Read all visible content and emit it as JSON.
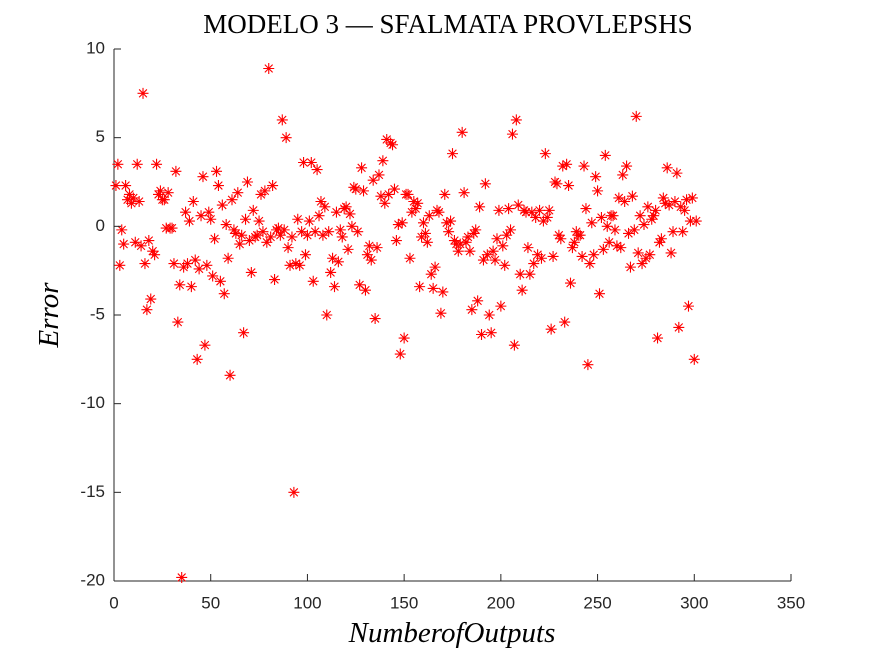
{
  "chart_data": {
    "type": "scatter",
    "title": "MODELO 3 — SFALMATA PROVLEPSHS",
    "x_label": "NumberofOutputs",
    "y_label": "Error",
    "color": "#ff0000",
    "marker": "asterisk",
    "xlim": [
      0,
      350
    ],
    "xticks": [
      0,
      50,
      100,
      150,
      200,
      250,
      300,
      350
    ],
    "ylim": [
      -20,
      10
    ],
    "yticks": [
      -20,
      -15,
      -10,
      -5,
      0,
      5,
      10
    ],
    "x": [
      1,
      2,
      3,
      4,
      5,
      6,
      7,
      8,
      9,
      10,
      11,
      12,
      13,
      14,
      15,
      16,
      17,
      18,
      19,
      20,
      21,
      22,
      23,
      24,
      25,
      26,
      27,
      28,
      29,
      30,
      31,
      32,
      33,
      34,
      35,
      36,
      37,
      38,
      39,
      40,
      41,
      42,
      43,
      44,
      45,
      46,
      47,
      48,
      49,
      50,
      51,
      52,
      53,
      54,
      55,
      56,
      57,
      58,
      59,
      60,
      61,
      62,
      63,
      64,
      65,
      66,
      67,
      68,
      69,
      70,
      71,
      72,
      73,
      74,
      75,
      76,
      77,
      78,
      79,
      80,
      81,
      82,
      83,
      84,
      85,
      86,
      87,
      88,
      89,
      90,
      91,
      92,
      93,
      94,
      95,
      96,
      97,
      98,
      99,
      100,
      101,
      102,
      103,
      104,
      105,
      106,
      107,
      108,
      109,
      110,
      111,
      112,
      113,
      114,
      115,
      116,
      117,
      118,
      119,
      120,
      121,
      122,
      123,
      124,
      125,
      126,
      127,
      128,
      129,
      130,
      131,
      132,
      133,
      134,
      135,
      136,
      137,
      138,
      139,
      140,
      141,
      142,
      143,
      144,
      145,
      146,
      147,
      148,
      149,
      150,
      151,
      152,
      153,
      154,
      155,
      156,
      157,
      158,
      159,
      160,
      161,
      162,
      163,
      164,
      165,
      166,
      167,
      168,
      169,
      170,
      171,
      172,
      173,
      174,
      175,
      176,
      177,
      178,
      179,
      180,
      181,
      182,
      183,
      184,
      185,
      186,
      187,
      188,
      189,
      190,
      191,
      192,
      193,
      194,
      195,
      196,
      197,
      198,
      199,
      200,
      201,
      202,
      203,
      204,
      205,
      206,
      207,
      208,
      209,
      210,
      211,
      212,
      213,
      214,
      215,
      216,
      217,
      218,
      219,
      220,
      221,
      222,
      223,
      224,
      225,
      226,
      227,
      228,
      229,
      230,
      231,
      232,
      233,
      234,
      235,
      236,
      237,
      238,
      239,
      240,
      241,
      242,
      243,
      244,
      245,
      246,
      247,
      248,
      249,
      250,
      251,
      252,
      253,
      254,
      255,
      256,
      257,
      258,
      259,
      260,
      261,
      262,
      263,
      264,
      265,
      266,
      267,
      268,
      269,
      270,
      271,
      272,
      273,
      274,
      275,
      276,
      277,
      278,
      279,
      280,
      281,
      282,
      283,
      284,
      285,
      286,
      287,
      288,
      289,
      290,
      291,
      292,
      293,
      294,
      295,
      296,
      297,
      298,
      299,
      300,
      301
    ],
    "values": [
      2.3,
      3.5,
      -2.2,
      -0.2,
      -1.0,
      2.3,
      1.5,
      1.8,
      1.3,
      1.6,
      -0.9,
      3.5,
      1.4,
      -1.1,
      7.5,
      -2.1,
      -4.7,
      -0.8,
      -4.1,
      -1.4,
      -1.6,
      3.5,
      1.8,
      2.0,
      1.5,
      1.5,
      -0.1,
      1.9,
      -0.1,
      -0.1,
      -2.1,
      3.1,
      -5.4,
      -3.3,
      -19.8,
      -2.3,
      0.8,
      -2.1,
      0.3,
      -3.4,
      1.4,
      -1.9,
      -7.5,
      -2.4,
      0.6,
      2.8,
      -6.7,
      -2.2,
      0.8,
      0.4,
      -2.8,
      -0.7,
      3.1,
      2.3,
      -3.1,
      1.2,
      -3.8,
      0.1,
      -1.8,
      -8.4,
      1.5,
      -0.2,
      -0.4,
      1.9,
      -1.0,
      -0.5,
      -6.0,
      0.4,
      2.5,
      -0.8,
      -2.6,
      0.9,
      -0.6,
      -0.5,
      0.3,
      1.8,
      -0.3,
      2.0,
      -0.9,
      8.9,
      -0.6,
      2.3,
      -3.0,
      -0.2,
      -0.1,
      -0.5,
      6.0,
      -0.2,
      5.0,
      -1.2,
      -2.2,
      -0.6,
      -15.0,
      -2.1,
      0.4,
      -2.2,
      -0.3,
      3.6,
      -1.6,
      -0.5,
      0.3,
      3.6,
      -3.1,
      -0.3,
      3.2,
      0.6,
      1.4,
      -0.5,
      1.1,
      -5.0,
      -0.3,
      -2.6,
      -1.8,
      -3.4,
      0.8,
      -2.0,
      -0.2,
      -0.6,
      1.0,
      1.1,
      -1.3,
      0.7,
      0.0,
      2.2,
      2.1,
      -0.3,
      -3.3,
      3.3,
      2.0,
      -3.6,
      -1.6,
      -1.1,
      -1.9,
      2.6,
      -5.2,
      -1.2,
      2.9,
      1.7,
      3.7,
      1.3,
      4.9,
      1.8,
      4.7,
      4.6,
      2.1,
      -0.8,
      0.1,
      -7.2,
      0.2,
      -6.3,
      1.8,
      1.8,
      -1.8,
      0.8,
      1.4,
      1.0,
      1.3,
      -3.4,
      -0.6,
      0.2,
      -0.4,
      -0.9,
      0.6,
      -2.7,
      -3.5,
      -2.3,
      0.9,
      0.8,
      -4.9,
      -3.7,
      1.8,
      0.2,
      -0.3,
      0.3,
      4.1,
      -0.8,
      -1.0,
      -1.4,
      -1.0,
      5.3,
      1.9,
      -0.9,
      -0.6,
      -1.4,
      -4.7,
      -0.4,
      -0.2,
      -4.2,
      1.1,
      -6.1,
      -1.9,
      2.4,
      -1.6,
      -5.0,
      -6.0,
      -1.4,
      -1.9,
      -0.7,
      0.9,
      -4.5,
      -1.1,
      -2.2,
      -0.5,
      1.0,
      -0.2,
      5.2,
      -6.7,
      6.0,
      1.2,
      -2.7,
      -3.6,
      0.9,
      0.8,
      -1.2,
      -2.7,
      0.8,
      -2.1,
      0.5,
      -1.6,
      0.9,
      -1.8,
      0.3,
      4.1,
      0.5,
      0.9,
      -5.8,
      -1.7,
      2.5,
      2.4,
      -0.5,
      -0.7,
      3.4,
      -5.4,
      3.5,
      2.3,
      -3.2,
      -1.2,
      -0.9,
      -0.3,
      -0.5,
      -0.5,
      -1.7,
      3.4,
      1.0,
      -7.8,
      -2.1,
      0.2,
      -1.6,
      2.8,
      2.0,
      -3.8,
      0.5,
      -1.3,
      4.0,
      0.0,
      -0.9,
      0.6,
      0.6,
      -0.2,
      -1.1,
      1.6,
      -1.2,
      2.9,
      1.4,
      3.4,
      -0.4,
      -2.3,
      1.7,
      -0.2,
      6.2,
      -1.5,
      0.6,
      -2.1,
      0.1,
      -1.8,
      1.1,
      -1.6,
      0.4,
      0.6,
      0.9,
      -6.3,
      -0.9,
      -0.7,
      1.6,
      1.3,
      3.3,
      1.2,
      -1.5,
      -0.3,
      1.4,
      3.0,
      -5.7,
      1.1,
      -0.3,
      0.9,
      1.5,
      -4.5,
      0.3,
      1.6,
      -7.5,
      0.3
    ]
  }
}
